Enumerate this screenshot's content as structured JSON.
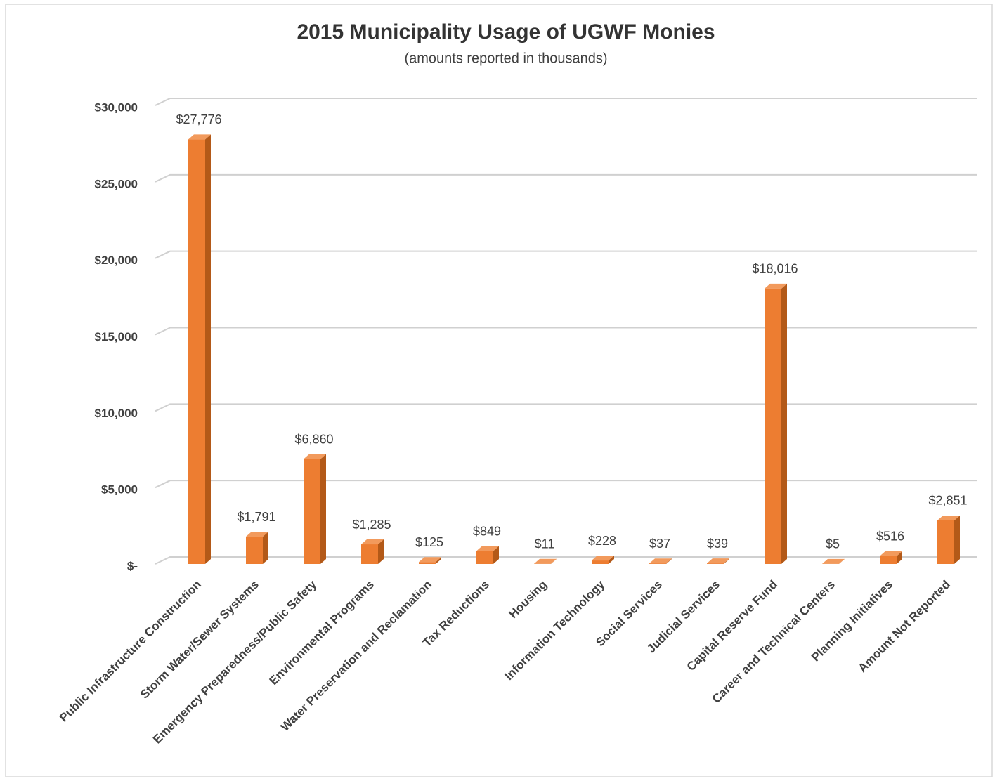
{
  "chart_data": {
    "type": "bar",
    "title": "2015 Municipality Usage of UGWF Monies",
    "subtitle": "(amounts reported in thousands)",
    "categories": [
      "Public Infrastructure Construction",
      "Storm Water/Sewer Systems",
      "Emergency Preparedness/Public Safety",
      "Environmental Programs",
      "Water Preservation and Reclamation",
      "Tax Reductions",
      "Housing",
      "Information Technology",
      "Social Services",
      "Judicial Services",
      "Capital Reserve Fund",
      "Career and Technical Centers",
      "Planning Initiatives",
      "Amount Not Reported"
    ],
    "values": [
      27776,
      1791,
      6860,
      1285,
      125,
      849,
      11,
      228,
      37,
      39,
      18016,
      5,
      516,
      2851
    ],
    "value_labels": [
      "$27,776",
      "$1,791",
      "$6,860",
      "$1,285",
      "$125",
      "$849",
      "$11",
      "$228",
      "$37",
      "$39",
      "$18,016",
      "$5",
      "$516",
      "$2,851"
    ],
    "color": "#ed7d31",
    "ylim": [
      0,
      30000
    ],
    "yticks": [
      {
        "value": 0,
        "label": "$-"
      },
      {
        "value": 5000,
        "label": "$5,000"
      },
      {
        "value": 10000,
        "label": "$10,000"
      },
      {
        "value": 15000,
        "label": "$15,000"
      },
      {
        "value": 20000,
        "label": "$20,000"
      },
      {
        "value": 25000,
        "label": "$25,000"
      },
      {
        "value": 30000,
        "label": "$30,000"
      }
    ],
    "grid": true
  }
}
